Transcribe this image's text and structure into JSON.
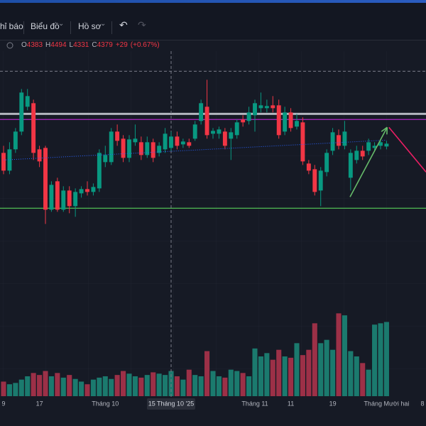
{
  "toolbar": {
    "items": [
      "hỉ báo",
      "Biểu đồ",
      "Hồ sơ"
    ]
  },
  "legend": {
    "labels": [
      "O",
      "H",
      "L",
      "C"
    ],
    "values": [
      4383,
      4494,
      4331,
      4379
    ],
    "change": {
      "value": 29,
      "label": "+29"
    },
    "change_percent": {
      "value": 0.67,
      "label": "(+0.67%)"
    }
  },
  "chart_data": {
    "type": "candlestick",
    "categories": [
      "9",
      null,
      null,
      null,
      null,
      null,
      "17",
      null,
      null,
      null,
      null,
      null,
      null,
      null,
      null,
      null,
      null,
      "Tháng 10",
      null,
      null,
      null,
      null,
      null,
      null,
      null,
      null,
      null,
      null,
      "15 Tháng 10 '25",
      null,
      null,
      null,
      null,
      null,
      null,
      null,
      null,
      null,
      null,
      null,
      null,
      null,
      "Tháng 11",
      null,
      null,
      null,
      null,
      null,
      "11",
      null,
      null,
      null,
      null,
      null,
      null,
      "19",
      null,
      null,
      null,
      null,
      null,
      null,
      null,
      null,
      "Tháng Mười hai",
      null,
      null,
      null,
      null,
      null,
      "8"
    ],
    "ohlc": [
      [
        4334,
        4364,
        4244,
        4259
      ],
      [
        4259,
        4379,
        4244,
        4349
      ],
      [
        4349,
        4439,
        4334,
        4424
      ],
      [
        4424,
        4604,
        4409,
        4589
      ],
      [
        4529,
        4604,
        4514,
        4574
      ],
      [
        4544,
        4559,
        4304,
        4334
      ],
      [
        4349,
        4364,
        4274,
        4298
      ],
      [
        4355,
        4364,
        4034,
        4094
      ],
      [
        4094,
        4214,
        4085,
        4199
      ],
      [
        4214,
        4229,
        4085,
        4094
      ],
      [
        4094,
        4193,
        4085,
        4175
      ],
      [
        4175,
        4193,
        4079,
        4109
      ],
      [
        4109,
        4184,
        4064,
        4169
      ],
      [
        4163,
        4193,
        4145,
        4181
      ],
      [
        4181,
        4214,
        4154,
        4169
      ],
      [
        4169,
        4205,
        4154,
        4190
      ],
      [
        4184,
        4349,
        4169,
        4334
      ],
      [
        4295,
        4364,
        4274,
        4325
      ],
      [
        4295,
        4439,
        4283,
        4424
      ],
      [
        4424,
        4454,
        4364,
        4385
      ],
      [
        4394,
        4409,
        4295,
        4313
      ],
      [
        4313,
        4409,
        4295,
        4391
      ],
      [
        4379,
        4454,
        4364,
        4394
      ],
      [
        4379,
        4403,
        4304,
        4325
      ],
      [
        4325,
        4403,
        4313,
        4379
      ],
      [
        4379,
        4394,
        4295,
        4313
      ],
      [
        4334,
        4379,
        4319,
        4364
      ],
      [
        4349,
        4439,
        4334,
        4415
      ],
      [
        4355,
        4424,
        4343,
        4403
      ],
      [
        4403,
        4424,
        4349,
        4364
      ],
      [
        4370,
        4394,
        4355,
        4382
      ],
      [
        4379,
        4394,
        4355,
        4364
      ],
      [
        4394,
        4469,
        4385,
        4454
      ],
      [
        4469,
        4559,
        4454,
        4544
      ],
      [
        4529,
        4643,
        4394,
        4409
      ],
      [
        4415,
        4439,
        4394,
        4427
      ],
      [
        4415,
        4445,
        4394,
        4433
      ],
      [
        4424,
        4439,
        4349,
        4364
      ],
      [
        4394,
        4439,
        4304,
        4421
      ],
      [
        4409,
        4475,
        4394,
        4463
      ],
      [
        4475,
        4493,
        4445,
        4463
      ],
      [
        4469,
        4529,
        4454,
        4505
      ],
      [
        4493,
        4559,
        4424,
        4544
      ],
      [
        4523,
        4589,
        4505,
        4535
      ],
      [
        4523,
        4559,
        4505,
        4532
      ],
      [
        4535,
        4574,
        4505,
        4523
      ],
      [
        4535,
        4559,
        4394,
        4409
      ],
      [
        4424,
        4529,
        4409,
        4505
      ],
      [
        4505,
        4523,
        4424,
        4439
      ],
      [
        4445,
        4499,
        4433,
        4469
      ],
      [
        4463,
        4484,
        4283,
        4298
      ],
      [
        4289,
        4304,
        4244,
        4259
      ],
      [
        4265,
        4283,
        4154,
        4169
      ],
      [
        4175,
        4274,
        4109,
        4259
      ],
      [
        4253,
        4349,
        4235,
        4334
      ],
      [
        4343,
        4439,
        4325,
        4421
      ],
      [
        4409,
        4433,
        4349,
        4364
      ],
      [
        4364,
        4469,
        4349,
        4424
      ],
      [
        4229,
        4349,
        4175,
        4334
      ],
      [
        4304,
        4364,
        4289,
        4343
      ],
      [
        4343,
        4364,
        4304,
        4319
      ],
      [
        4343,
        4394,
        4325,
        4379
      ],
      [
        4355,
        4379,
        4343,
        4364
      ],
      [
        4364,
        4385,
        4349,
        4379
      ],
      [
        4361,
        4385,
        4349,
        4373
      ],
      null,
      null,
      null,
      null,
      null,
      null
    ],
    "volume": [
      22,
      18,
      20,
      25,
      30,
      35,
      32,
      38,
      30,
      35,
      28,
      32,
      26,
      22,
      18,
      25,
      28,
      30,
      26,
      32,
      38,
      34,
      30,
      28,
      32,
      36,
      34,
      32,
      38,
      30,
      25,
      40,
      32,
      30,
      68,
      38,
      30,
      28,
      40,
      38,
      35,
      30,
      72,
      60,
      65,
      55,
      70,
      60,
      58,
      80,
      62,
      70,
      110,
      80,
      85,
      70,
      125,
      122,
      68,
      60,
      50,
      40,
      108,
      110,
      112,
      null,
      null,
      null,
      null,
      null,
      null
    ],
    "ylim": [
      3300,
      4725
    ],
    "volume_lim": [
      0,
      150
    ],
    "up_color": "#089981",
    "down_color": "#f23645",
    "volume_up_color": "#1b7a6e",
    "volume_down_color": "#9c3047",
    "levels": [
      {
        "price": 4499,
        "color": "#b2b5be"
      },
      {
        "price": 4475,
        "color": "#9c27b0"
      },
      {
        "price": 4100,
        "color": "#4caf50"
      }
    ],
    "trend_lines": [
      {
        "from": [
          0,
          4304
        ],
        "to": [
          64,
          4388
        ],
        "color": "#2962ff",
        "style": "dotted"
      },
      {
        "from": [
          57.9,
          4148
        ],
        "to": [
          64.1,
          4442
        ],
        "color": "#66bb6a",
        "style": "arrow"
      },
      {
        "from": [
          64.4,
          4442
        ],
        "to": [
          70.6,
          4253
        ],
        "color": "#e91e63",
        "style": "solid"
      }
    ],
    "crosshair": {
      "index": 28,
      "price": 4679
    }
  }
}
